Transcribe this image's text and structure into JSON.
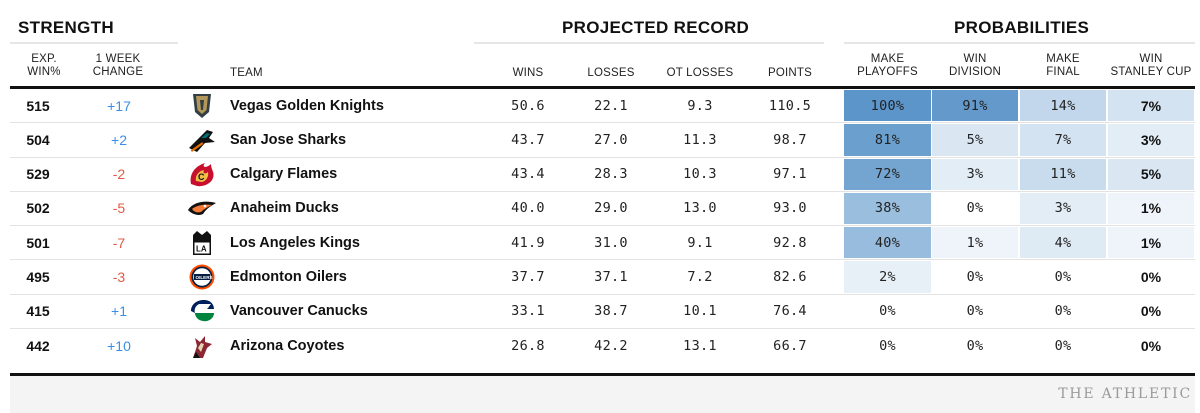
{
  "groups": {
    "strength": "STRENGTH",
    "projected": "PROJECTED RECORD",
    "probabilities": "PROBABILITIES"
  },
  "columns": {
    "exp_l1": "EXP.",
    "exp_l2": "WIN%",
    "chg_l1": "1 WEEK",
    "chg_l2": "CHANGE",
    "team": "TEAM",
    "wins": "WINS",
    "losses": "LOSSES",
    "ot_losses": "OT LOSSES",
    "points": "POINTS",
    "play_l1": "MAKE",
    "play_l2": "PLAYOFFS",
    "div_l1": "WIN",
    "div_l2": "DIVISION",
    "fin_l1": "MAKE",
    "fin_l2": "FINAL",
    "cup_l1": "WIN",
    "cup_l2": "STANLEY CUP"
  },
  "rows": [
    {
      "exp": "515",
      "change": "+17",
      "trend": "up",
      "team": "Vegas Golden Knights",
      "logo_icon": "vegas-golden-knights-logo-icon",
      "wins": "50.6",
      "losses": "22.1",
      "otl": "9.3",
      "points": "110.5",
      "playoffs": "100%",
      "playoffs_p": 100,
      "division": "91%",
      "division_p": 91,
      "final": "14%",
      "final_p": 14,
      "cup": "7%",
      "cup_p": 7
    },
    {
      "exp": "504",
      "change": "+2",
      "trend": "up",
      "team": "San Jose Sharks",
      "logo_icon": "san-jose-sharks-logo-icon",
      "wins": "43.7",
      "losses": "27.0",
      "otl": "11.3",
      "points": "98.7",
      "playoffs": "81%",
      "playoffs_p": 81,
      "division": "5%",
      "division_p": 5,
      "final": "7%",
      "final_p": 7,
      "cup": "3%",
      "cup_p": 3
    },
    {
      "exp": "529",
      "change": "-2",
      "trend": "down",
      "team": "Calgary Flames",
      "logo_icon": "calgary-flames-logo-icon",
      "wins": "43.4",
      "losses": "28.3",
      "otl": "10.3",
      "points": "97.1",
      "playoffs": "72%",
      "playoffs_p": 72,
      "division": "3%",
      "division_p": 3,
      "final": "11%",
      "final_p": 11,
      "cup": "5%",
      "cup_p": 5
    },
    {
      "exp": "502",
      "change": "-5",
      "trend": "down",
      "team": "Anaheim Ducks",
      "logo_icon": "anaheim-ducks-logo-icon",
      "wins": "40.0",
      "losses": "29.0",
      "otl": "13.0",
      "points": "93.0",
      "playoffs": "38%",
      "playoffs_p": 38,
      "division": "0%",
      "division_p": 0,
      "final": "3%",
      "final_p": 3,
      "cup": "1%",
      "cup_p": 1
    },
    {
      "exp": "501",
      "change": "-7",
      "trend": "down",
      "team": "Los Angeles Kings",
      "logo_icon": "los-angeles-kings-logo-icon",
      "wins": "41.9",
      "losses": "31.0",
      "otl": "9.1",
      "points": "92.8",
      "playoffs": "40%",
      "playoffs_p": 40,
      "division": "1%",
      "division_p": 1,
      "final": "4%",
      "final_p": 4,
      "cup": "1%",
      "cup_p": 1
    },
    {
      "exp": "495",
      "change": "-3",
      "trend": "down",
      "team": "Edmonton Oilers",
      "logo_icon": "edmonton-oilers-logo-icon",
      "wins": "37.7",
      "losses": "37.1",
      "otl": "7.2",
      "points": "82.6",
      "playoffs": "2%",
      "playoffs_p": 2,
      "division": "0%",
      "division_p": 0,
      "final": "0%",
      "final_p": 0,
      "cup": "0%",
      "cup_p": 0
    },
    {
      "exp": "415",
      "change": "+1",
      "trend": "up",
      "team": "Vancouver Canucks",
      "logo_icon": "vancouver-canucks-logo-icon",
      "wins": "33.1",
      "losses": "38.7",
      "otl": "10.1",
      "points": "76.4",
      "playoffs": "0%",
      "playoffs_p": 0,
      "division": "0%",
      "division_p": 0,
      "final": "0%",
      "final_p": 0,
      "cup": "0%",
      "cup_p": 0
    },
    {
      "exp": "442",
      "change": "+10",
      "trend": "up",
      "team": "Arizona Coyotes",
      "logo_icon": "arizona-coyotes-logo-icon",
      "wins": "26.8",
      "losses": "42.2",
      "otl": "13.1",
      "points": "66.7",
      "playoffs": "0%",
      "playoffs_p": 0,
      "division": "0%",
      "division_p": 0,
      "final": "0%",
      "final_p": 0,
      "cup": "0%",
      "cup_p": 0
    }
  ],
  "colors": {
    "heat_strong": "#5b95c9",
    "heat_light": "#ffffff",
    "positive": "#3a8ee6",
    "negative": "#e05b45"
  },
  "footer": "THE ATHLETIC"
}
